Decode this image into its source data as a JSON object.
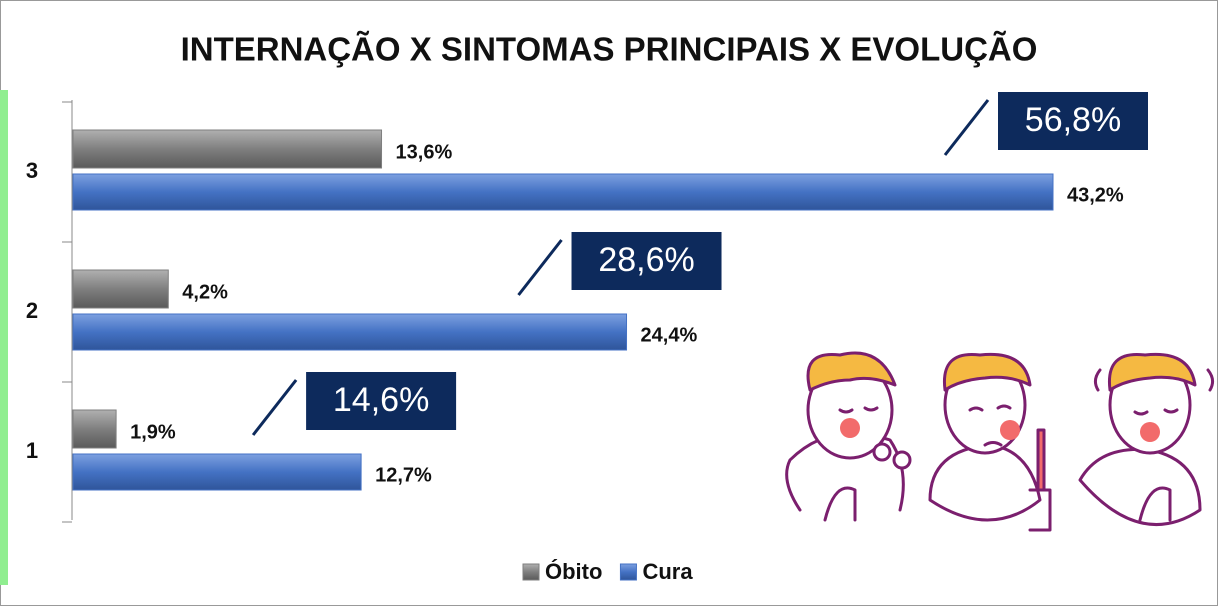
{
  "chart_data": {
    "type": "bar",
    "orientation": "horizontal",
    "title": "INTERNAÇÃO X SINTOMAS PRINCIPAIS X EVOLUÇÃO",
    "categories": [
      "1",
      "2",
      "3"
    ],
    "series": [
      {
        "name": "Óbito",
        "color": "#7f7f7f",
        "values": [
          1.9,
          4.2,
          13.6
        ],
        "value_labels": [
          "1,9%",
          "4,2%",
          "13,6%"
        ]
      },
      {
        "name": "Cura",
        "color": "#4472c4",
        "values": [
          12.7,
          24.4,
          43.2
        ],
        "value_labels": [
          "12,7%",
          "24,4%",
          "43,2%"
        ]
      }
    ],
    "annotations": [
      "14,6%",
      "28,6%",
      "56,8%"
    ],
    "legend": "bottom"
  }
}
